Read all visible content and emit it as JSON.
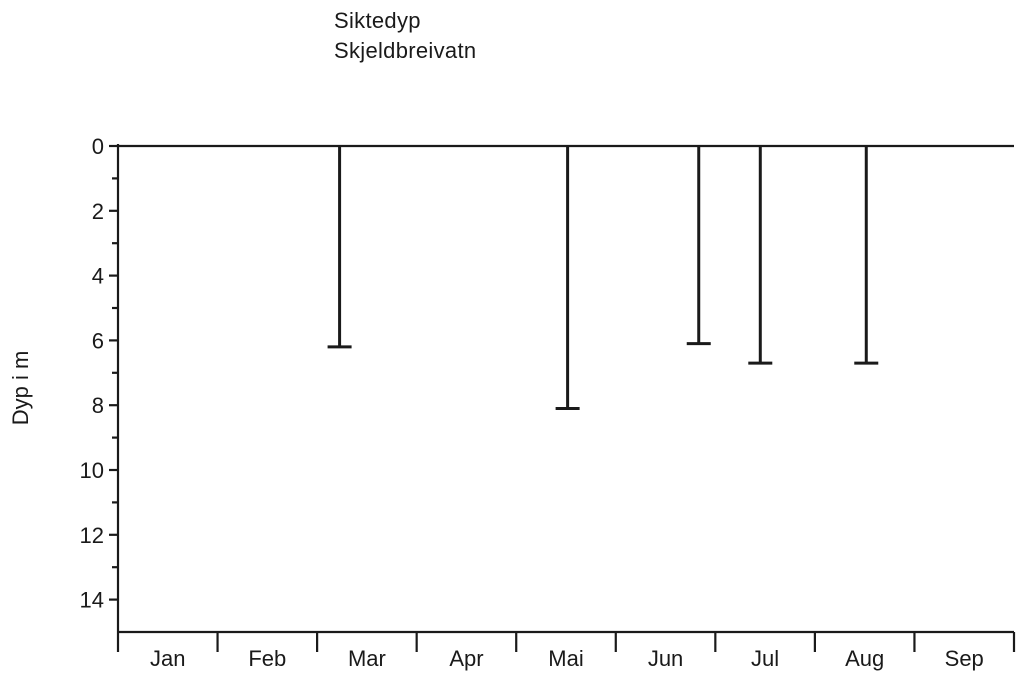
{
  "chart_data": {
    "type": "bar",
    "orientation": "downward-from-zero",
    "title": "Siktedyp",
    "subtitle": "Skjeldbreivatn",
    "ylabel": "Dyp i m",
    "xlabel": "",
    "ylim": [
      0,
      15
    ],
    "y_inverted": true,
    "y_major_ticks": [
      0,
      2,
      4,
      6,
      8,
      10,
      12,
      14
    ],
    "y_minor_ticks": [
      1,
      3,
      5,
      7,
      9,
      11,
      13
    ],
    "months": [
      "Jan",
      "Feb",
      "Mar",
      "Apr",
      "Mai",
      "Jun",
      "Jul",
      "Aug",
      "Sep"
    ],
    "series": [
      {
        "points": [
          {
            "date": "Mar 8",
            "depth": 6.2
          },
          {
            "date": "Mai 17",
            "depth": 8.1
          },
          {
            "date": "Jun 26",
            "depth": 6.1
          },
          {
            "date": "Jul 15",
            "depth": 6.7
          },
          {
            "date": "Aug 17",
            "depth": 6.7
          }
        ]
      }
    ],
    "grid": false,
    "legend": "none"
  }
}
